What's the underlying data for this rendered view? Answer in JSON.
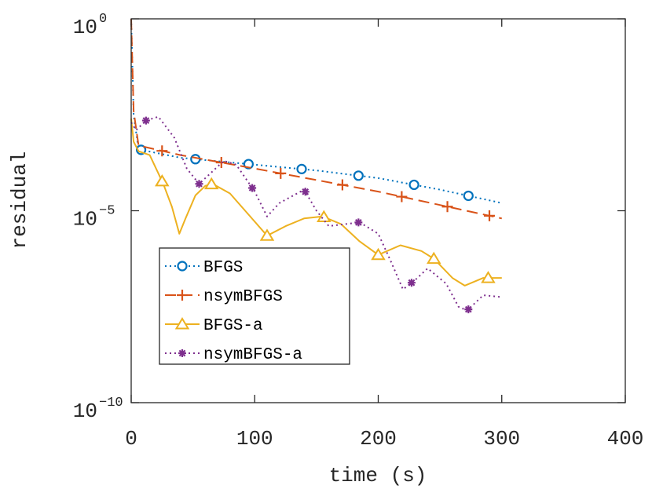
{
  "chart_data": {
    "type": "line",
    "title": "",
    "xlabel": "time (s)",
    "ylabel": "residual",
    "xlim": [
      0,
      400
    ],
    "ylim_log10": [
      -10,
      0
    ],
    "y_scale": "log",
    "grid": false,
    "legend_position": "lower-left",
    "x_ticks": [
      {
        "value": 0,
        "label": "0"
      },
      {
        "value": 100,
        "label": "100"
      },
      {
        "value": 200,
        "label": "200"
      },
      {
        "value": 300,
        "label": "300"
      },
      {
        "value": 400,
        "label": "400"
      }
    ],
    "y_ticks": [
      {
        "value": 0,
        "base": "10",
        "exponent": "0"
      },
      {
        "value": -5,
        "base": "10",
        "exponent": "−5"
      },
      {
        "value": -10,
        "base": "10",
        "exponent": "−10"
      }
    ],
    "series": [
      {
        "name": "BFGS",
        "color": "#0072BD",
        "dash": "dotted",
        "marker": "circle",
        "points": [
          [
            0,
            0
          ],
          [
            2,
            -2.5
          ],
          [
            6,
            -3.4
          ],
          [
            40,
            -3.62
          ],
          [
            100,
            -3.8
          ],
          [
            150,
            -3.95
          ],
          [
            200,
            -4.15
          ],
          [
            250,
            -4.45
          ],
          [
            300,
            -4.8
          ]
        ],
        "markers_x": [
          8,
          52,
          95,
          138,
          184,
          229,
          273
        ]
      },
      {
        "name": "nsymBFGS",
        "color": "#D95319",
        "dash": "dashed",
        "marker": "plus",
        "points": [
          [
            0,
            0
          ],
          [
            2,
            -2.4
          ],
          [
            6,
            -3.3
          ],
          [
            40,
            -3.55
          ],
          [
            100,
            -3.9
          ],
          [
            150,
            -4.2
          ],
          [
            200,
            -4.5
          ],
          [
            250,
            -4.85
          ],
          [
            300,
            -5.2
          ]
        ],
        "markers_x": [
          25,
          73,
          121,
          171,
          219,
          256,
          290
        ]
      },
      {
        "name": "BFGS-a",
        "color": "#EDB120",
        "dash": "solid",
        "marker": "triangle",
        "points": [
          [
            0,
            -2.6
          ],
          [
            2,
            -3.2
          ],
          [
            6,
            -3.45
          ],
          [
            15,
            -3.55
          ],
          [
            26,
            -4.3
          ],
          [
            33,
            -4.9
          ],
          [
            39,
            -5.6
          ],
          [
            44,
            -5.2
          ],
          [
            52,
            -4.6
          ],
          [
            60,
            -4.35
          ],
          [
            66,
            -4.3
          ],
          [
            80,
            -4.55
          ],
          [
            95,
            -5.1
          ],
          [
            110,
            -5.65
          ],
          [
            125,
            -5.4
          ],
          [
            140,
            -5.2
          ],
          [
            155,
            -5.15
          ],
          [
            170,
            -5.35
          ],
          [
            185,
            -5.8
          ],
          [
            200,
            -6.15
          ],
          [
            218,
            -5.9
          ],
          [
            235,
            -6.05
          ],
          [
            245,
            -6.25
          ],
          [
            260,
            -6.75
          ],
          [
            270,
            -6.95
          ],
          [
            285,
            -6.75
          ],
          [
            300,
            -6.75
          ]
        ],
        "markers_x": [
          25,
          65,
          110,
          156,
          200,
          245,
          289
        ]
      },
      {
        "name": "nsymBFGS-a",
        "color": "#7E2F8E",
        "dash": "dotted",
        "marker": "asterisk",
        "points": [
          [
            0,
            -2.7
          ],
          [
            4,
            -2.9
          ],
          [
            12,
            -2.65
          ],
          [
            22,
            -2.55
          ],
          [
            35,
            -3.1
          ],
          [
            45,
            -3.9
          ],
          [
            55,
            -4.3
          ],
          [
            65,
            -4.0
          ],
          [
            75,
            -3.7
          ],
          [
            85,
            -3.8
          ],
          [
            100,
            -4.5
          ],
          [
            110,
            -5.15
          ],
          [
            120,
            -4.8
          ],
          [
            140,
            -4.45
          ],
          [
            150,
            -5.0
          ],
          [
            160,
            -5.4
          ],
          [
            185,
            -5.3
          ],
          [
            200,
            -5.6
          ],
          [
            210,
            -6.3
          ],
          [
            220,
            -7.05
          ],
          [
            230,
            -6.8
          ],
          [
            240,
            -6.5
          ],
          [
            255,
            -6.9
          ],
          [
            265,
            -7.5
          ],
          [
            272,
            -7.6
          ],
          [
            285,
            -7.2
          ],
          [
            300,
            -7.25
          ]
        ],
        "markers_x": [
          12,
          55,
          98,
          141,
          184,
          227,
          273
        ]
      }
    ]
  }
}
